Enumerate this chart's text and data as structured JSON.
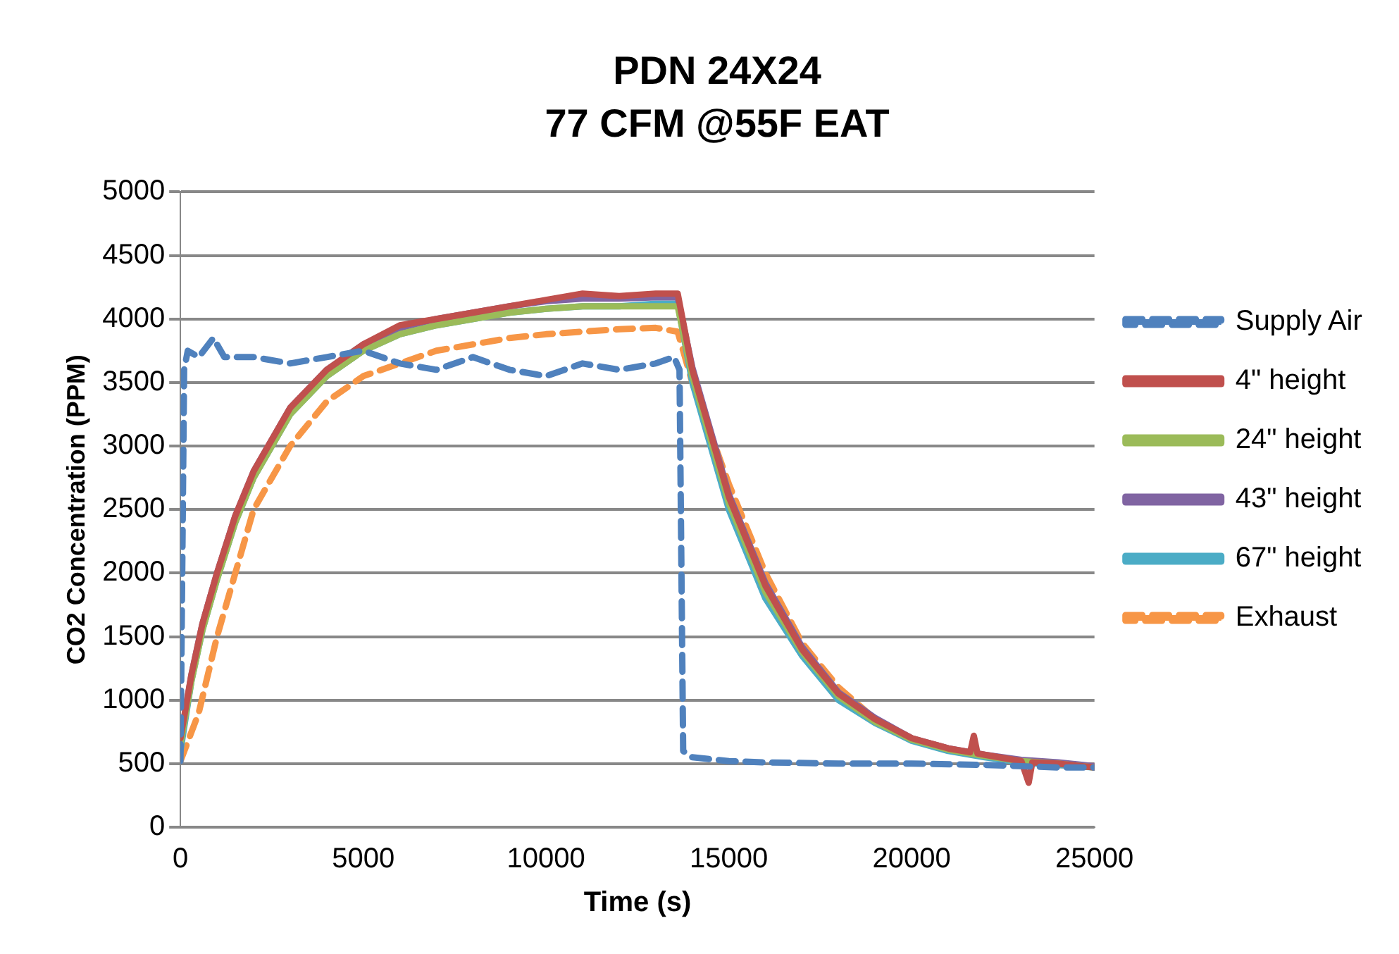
{
  "chart_data": {
    "type": "line",
    "title": "PDN 24X24",
    "subtitle": "77 CFM @55F EAT",
    "xlabel": "Time (s)",
    "ylabel": "CO2 Concentration (PPM)",
    "xlim": [
      0,
      25000
    ],
    "xticks": [
      0,
      5000,
      10000,
      15000,
      20000,
      25000
    ],
    "ylim": [
      0,
      5000
    ],
    "yticks": [
      0,
      500,
      1000,
      1500,
      2000,
      2500,
      3000,
      3500,
      4000,
      4500,
      5000
    ],
    "grid": "y",
    "legend": "right",
    "marker": "none",
    "series": [
      {
        "name": "Supply Air",
        "color": "#4f81bd",
        "line_style": "dashed",
        "x": [
          0,
          100,
          200,
          500,
          900,
          1200,
          2000,
          3000,
          4000,
          5000,
          6000,
          7000,
          8000,
          9000,
          10000,
          11000,
          12000,
          13000,
          13500,
          13650,
          13750,
          14000,
          15000,
          16000,
          18000,
          20000,
          22000,
          24000,
          25000
        ],
        "values": [
          520,
          3600,
          3750,
          3700,
          3850,
          3700,
          3700,
          3650,
          3700,
          3750,
          3650,
          3600,
          3700,
          3600,
          3550,
          3650,
          3600,
          3650,
          3700,
          3600,
          600,
          550,
          520,
          510,
          500,
          500,
          490,
          470,
          470
        ]
      },
      {
        "name": "4\" height",
        "color": "#c0504d",
        "line_style": "solid",
        "x": [
          0,
          300,
          600,
          1000,
          1500,
          2000,
          3000,
          4000,
          5000,
          6000,
          7000,
          8000,
          9000,
          10000,
          11000,
          12000,
          13000,
          13600,
          14000,
          15000,
          16000,
          17000,
          18000,
          19000,
          20000,
          21000,
          21600,
          21700,
          21800,
          22000,
          23000,
          23200,
          23300,
          24000,
          25000
        ],
        "values": [
          700,
          1200,
          1600,
          2000,
          2450,
          2800,
          3300,
          3600,
          3800,
          3950,
          4000,
          4050,
          4100,
          4150,
          4200,
          4180,
          4200,
          4200,
          3600,
          2600,
          1900,
          1400,
          1050,
          850,
          700,
          620,
          590,
          720,
          580,
          570,
          520,
          350,
          510,
          500,
          470
        ]
      },
      {
        "name": "24\" height",
        "color": "#9bbb59",
        "line_style": "solid",
        "x": [
          0,
          300,
          600,
          1000,
          1500,
          2000,
          3000,
          4000,
          5000,
          6000,
          7000,
          8000,
          9000,
          10000,
          11000,
          12000,
          13000,
          13600,
          14000,
          15000,
          16000,
          17000,
          18000,
          19000,
          20000,
          21000,
          22000,
          23000,
          24000,
          25000
        ],
        "values": [
          650,
          1150,
          1550,
          1950,
          2400,
          2750,
          3250,
          3550,
          3750,
          3880,
          3950,
          4000,
          4050,
          4080,
          4100,
          4100,
          4100,
          4100,
          3550,
          2550,
          1850,
          1380,
          1030,
          830,
          690,
          610,
          560,
          520,
          500,
          470
        ]
      },
      {
        "name": "43\" height",
        "color": "#8064a2",
        "line_style": "solid",
        "x": [
          0,
          300,
          600,
          1000,
          1500,
          2000,
          3000,
          4000,
          5000,
          6000,
          7000,
          8000,
          9000,
          10000,
          11000,
          12000,
          13000,
          13600,
          14000,
          15000,
          16000,
          17000,
          18000,
          19000,
          20000,
          21000,
          22000,
          23000,
          24000,
          25000
        ],
        "values": [
          680,
          1200,
          1600,
          2000,
          2450,
          2800,
          3300,
          3600,
          3800,
          3930,
          4000,
          4050,
          4100,
          4140,
          4160,
          4160,
          4170,
          4170,
          3620,
          2620,
          1920,
          1420,
          1060,
          860,
          700,
          620,
          570,
          530,
          510,
          480
        ]
      },
      {
        "name": "67\" height",
        "color": "#4bacc6",
        "line_style": "solid",
        "x": [
          0,
          300,
          600,
          1000,
          1500,
          2000,
          3000,
          4000,
          5000,
          6000,
          7000,
          8000,
          9000,
          10000,
          11000,
          12000,
          13000,
          13600,
          14000,
          15000,
          16000,
          17000,
          18000,
          19000,
          20000,
          21000,
          22000,
          23000,
          24000,
          25000
        ],
        "values": [
          600,
          1150,
          1550,
          1950,
          2400,
          2750,
          3250,
          3550,
          3750,
          3880,
          3950,
          4000,
          4050,
          4080,
          4100,
          4100,
          4120,
          4120,
          3500,
          2500,
          1800,
          1350,
          1000,
          820,
          680,
          600,
          550,
          510,
          490,
          470
        ]
      },
      {
        "name": "Exhaust",
        "color": "#f79646",
        "line_style": "dashed",
        "x": [
          0,
          500,
          1000,
          2000,
          3000,
          4000,
          5000,
          6000,
          7000,
          8000,
          9000,
          10000,
          11000,
          12000,
          13000,
          13600,
          14000,
          15000,
          16000,
          17000,
          18000,
          19000,
          20000,
          21000,
          22000,
          23000,
          24000,
          25000
        ],
        "values": [
          520,
          900,
          1500,
          2500,
          3000,
          3350,
          3550,
          3650,
          3750,
          3800,
          3850,
          3880,
          3900,
          3920,
          3930,
          3900,
          3500,
          2700,
          2000,
          1450,
          1100,
          850,
          700,
          620,
          560,
          520,
          490,
          480
        ]
      }
    ]
  }
}
